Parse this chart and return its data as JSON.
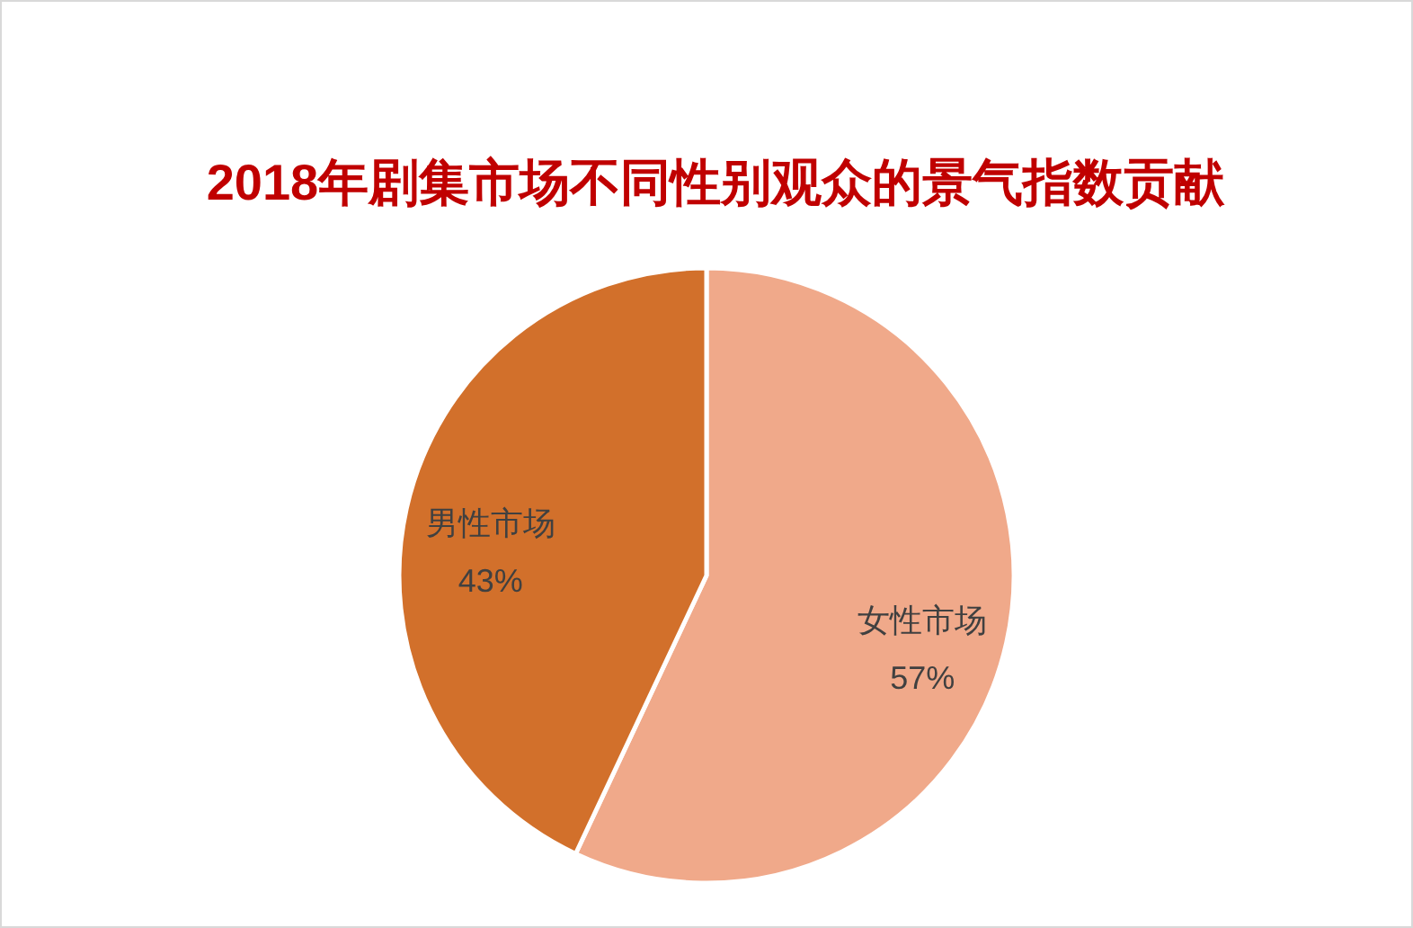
{
  "chart_data": {
    "type": "pie",
    "title": "2018年剧集市场不同性别观众的景气指数贡献",
    "categories": [
      "女性市场",
      "男性市场"
    ],
    "values": [
      57,
      43
    ],
    "colors": [
      "#f0a98a",
      "#d2702b"
    ],
    "value_labels": [
      "57%",
      "43%"
    ]
  }
}
